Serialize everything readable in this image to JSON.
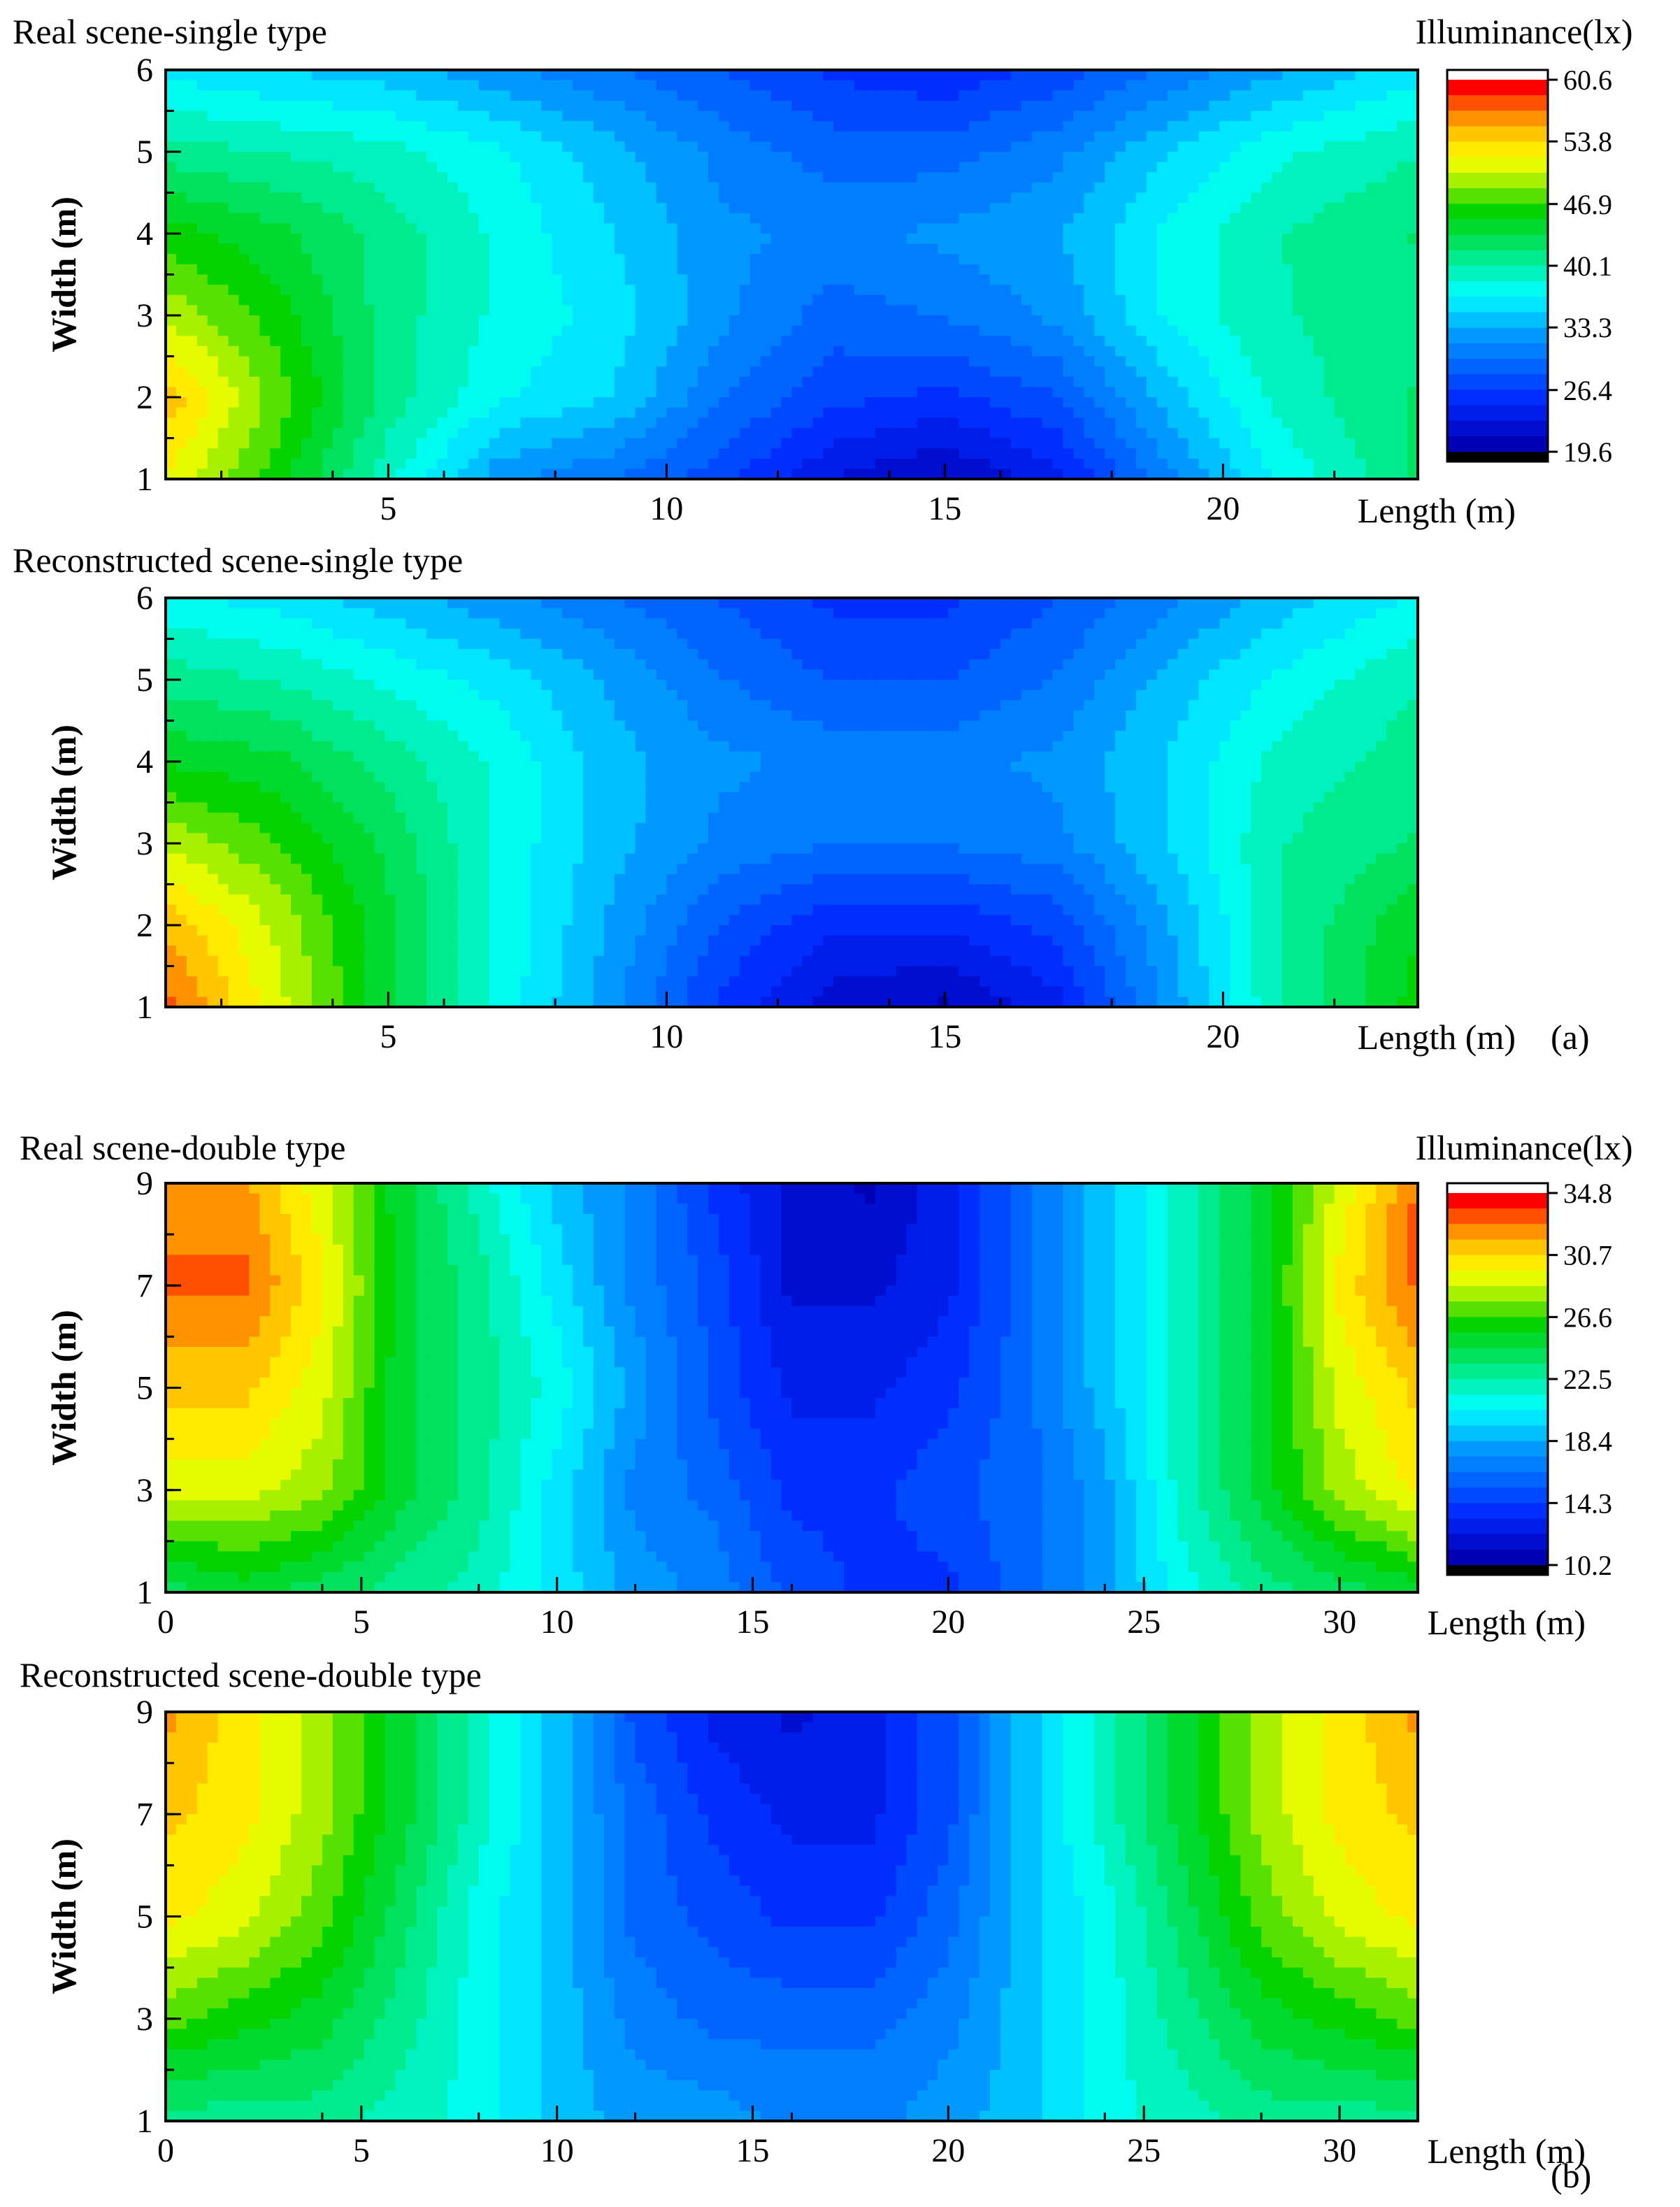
{
  "figure": {
    "tags": [
      "(a)",
      "(b)"
    ]
  },
  "chart_data": [
    {
      "type": "heatmap",
      "title": "Real scene-single type",
      "xlabel": "Length (m)",
      "ylabel": "Width (m)",
      "xlim": [
        1,
        23.5
      ],
      "ylim": [
        1,
        6
      ],
      "x_ticks": [
        "5",
        "10",
        "15",
        "20"
      ],
      "y_ticks": [
        "1",
        "2",
        "3",
        "4",
        "5",
        "6"
      ],
      "x_tick_values": [
        5,
        10,
        15,
        20
      ],
      "y_tick_values": [
        1,
        2,
        3,
        4,
        5,
        6
      ],
      "colorbar_title": "Illuminance(lx)",
      "colorbar_ticks": [
        "60.6",
        "53.8",
        "46.9",
        "40.1",
        "33.3",
        "26.4",
        "19.6"
      ],
      "colorbar_range": [
        19.6,
        60.6
      ],
      "x": [
        1,
        3,
        5,
        7,
        9,
        11,
        13,
        15,
        17,
        19,
        21,
        23.5
      ],
      "y": [
        1,
        2,
        3,
        4,
        5,
        6
      ],
      "z": [
        [
          52,
          46,
          39,
          32,
          30,
          27,
          23,
          21,
          24,
          31,
          37,
          42
        ],
        [
          55,
          48,
          41,
          37,
          35,
          30,
          27,
          26,
          28,
          34,
          39,
          42
        ],
        [
          50,
          46,
          41,
          38,
          36,
          32,
          29,
          30,
          32,
          37,
          40,
          41
        ],
        [
          46,
          44,
          41,
          38,
          35,
          32,
          31,
          32,
          33,
          37,
          40,
          42
        ],
        [
          41,
          40,
          39,
          37,
          34,
          31,
          29,
          29,
          31,
          35,
          38,
          40
        ],
        [
          36,
          35,
          34,
          32,
          30,
          28,
          26,
          25,
          27,
          30,
          33,
          36
        ]
      ]
    },
    {
      "type": "heatmap",
      "title": "Reconstructed scene-single type",
      "xlabel": "Length (m)",
      "ylabel": "Width (m)",
      "xlim": [
        1,
        23.5
      ],
      "ylim": [
        1,
        6
      ],
      "x_ticks": [
        "5",
        "10",
        "15",
        "20"
      ],
      "y_ticks": [
        "1",
        "2",
        "3",
        "4",
        "5",
        "6"
      ],
      "x_tick_values": [
        5,
        10,
        15,
        20
      ],
      "y_tick_values": [
        1,
        2,
        3,
        4,
        5,
        6
      ],
      "colorbar_range": [
        19.6,
        60.6
      ],
      "x": [
        1,
        3,
        5,
        7,
        9,
        11,
        13,
        15,
        17,
        19,
        21,
        23.5
      ],
      "y": [
        1,
        2,
        3,
        4,
        5,
        6
      ],
      "z": [
        [
          58,
          51,
          44,
          38,
          32,
          26,
          22,
          21,
          24,
          32,
          40,
          46
        ],
        [
          55,
          50,
          44,
          38,
          33,
          28,
          25,
          25,
          27,
          33,
          40,
          45
        ],
        [
          50,
          47,
          43,
          38,
          34,
          31,
          30,
          30,
          31,
          35,
          40,
          42
        ],
        [
          45,
          44,
          41,
          38,
          34,
          32,
          31,
          31,
          32,
          35,
          39,
          41
        ],
        [
          41,
          40,
          38,
          36,
          33,
          30,
          28,
          28,
          30,
          34,
          37,
          40
        ],
        [
          37,
          36,
          34,
          32,
          30,
          28,
          26,
          26,
          28,
          31,
          34,
          37
        ]
      ]
    },
    {
      "type": "heatmap",
      "title": "Real scene-double type",
      "xlabel": "Length (m)",
      "ylabel": "Width (m)",
      "xlim": [
        0,
        32
      ],
      "ylim": [
        1,
        9
      ],
      "x_ticks": [
        "0",
        "5",
        "10",
        "15",
        "20",
        "25",
        "30"
      ],
      "y_ticks": [
        "1",
        "3",
        "5",
        "7",
        "9"
      ],
      "x_tick_values": [
        0,
        5,
        10,
        15,
        20,
        25,
        30
      ],
      "y_tick_values": [
        1,
        3,
        5,
        7,
        9
      ],
      "colorbar_title": "Illuminance(lx)",
      "colorbar_ticks": [
        "34.8",
        "30.7",
        "26.6",
        "22.5",
        "18.4",
        "14.3",
        "10.2"
      ],
      "colorbar_range": [
        10.2,
        34.8
      ],
      "x": [
        0,
        2,
        4,
        6,
        8,
        10,
        12,
        14,
        16,
        18,
        20,
        22,
        24,
        26,
        28,
        30,
        32
      ],
      "y": [
        1,
        3,
        5,
        7,
        9
      ],
      "z": [
        [
          24,
          25,
          24,
          23,
          22,
          20,
          18,
          17,
          15,
          14,
          14,
          16,
          18,
          21,
          23,
          24,
          25
        ],
        [
          29,
          29,
          28,
          25,
          23,
          20,
          17,
          16,
          14,
          14,
          15,
          16,
          18,
          22,
          25,
          28,
          30
        ],
        [
          31,
          31,
          29,
          25,
          23,
          21,
          18,
          15,
          13,
          13,
          14,
          16,
          19,
          22,
          25,
          29,
          31
        ],
        [
          33,
          33,
          30,
          25,
          23,
          20,
          17,
          15,
          12,
          12,
          13,
          16,
          19,
          22,
          25,
          30,
          33
        ],
        [
          32,
          32,
          29,
          25,
          22,
          19,
          17,
          14,
          12,
          11,
          13,
          16,
          19,
          22,
          25,
          29,
          33
        ]
      ]
    },
    {
      "type": "heatmap",
      "title": "Reconstructed scene-double type",
      "xlabel": "Length (m)",
      "ylabel": "Width (m)",
      "xlim": [
        0,
        32
      ],
      "ylim": [
        1,
        9
      ],
      "x_ticks": [
        "0",
        "5",
        "10",
        "15",
        "20",
        "25",
        "30"
      ],
      "y_ticks": [
        "1",
        "3",
        "5",
        "7",
        "9"
      ],
      "x_tick_values": [
        0,
        5,
        10,
        15,
        20,
        25,
        30
      ],
      "y_tick_values": [
        1,
        3,
        5,
        7,
        9
      ],
      "colorbar_range": [
        10.2,
        34.8
      ],
      "x": [
        0,
        2,
        4,
        6,
        8,
        10,
        12,
        14,
        16,
        18,
        20,
        22,
        24,
        26,
        28,
        30,
        32
      ],
      "y": [
        1,
        3,
        5,
        7,
        9
      ],
      "z": [
        [
          23,
          23,
          23,
          22,
          21,
          19,
          18,
          18,
          17,
          17,
          18,
          19,
          21,
          22,
          23,
          23,
          23
        ],
        [
          27,
          26,
          25,
          23,
          21,
          19,
          17,
          16,
          16,
          16,
          17,
          19,
          21,
          23,
          25,
          26,
          27
        ],
        [
          30,
          29,
          27,
          24,
          21,
          19,
          16,
          15,
          14,
          14,
          16,
          19,
          21,
          24,
          27,
          29,
          30
        ],
        [
          31,
          30,
          28,
          25,
          22,
          19,
          16,
          14,
          13,
          13,
          15,
          19,
          22,
          25,
          28,
          30,
          31
        ],
        [
          32,
          30,
          28,
          25,
          22,
          19,
          15,
          13,
          12,
          13,
          15,
          19,
          22,
          25,
          28,
          30,
          32
        ]
      ]
    }
  ]
}
